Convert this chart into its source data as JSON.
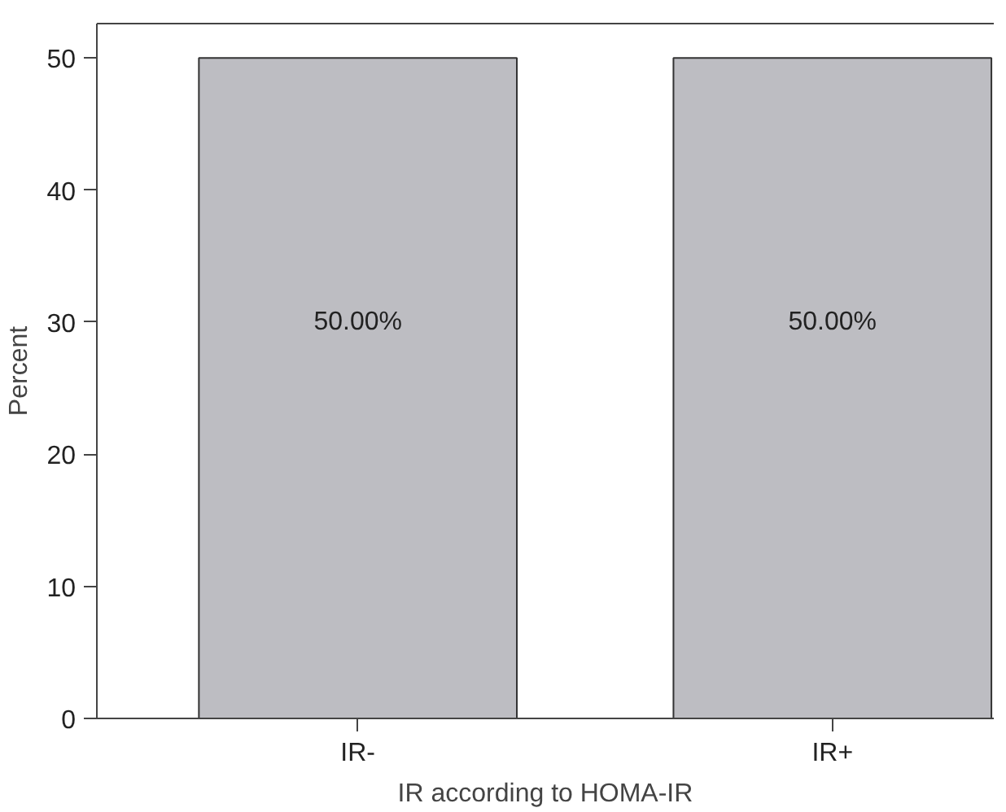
{
  "chart_data": {
    "type": "bar",
    "xlabel": "IR according to HOMA-IR",
    "ylabel": "Percent",
    "categories": [
      "IR-",
      "IR+"
    ],
    "values": [
      50,
      50
    ],
    "value_labels": [
      "50.00%",
      "50.00%"
    ],
    "color": "#bdbdc2",
    "ylim": [
      0,
      52.6
    ],
    "yticks": [
      0,
      10,
      20,
      30,
      40,
      50
    ]
  }
}
